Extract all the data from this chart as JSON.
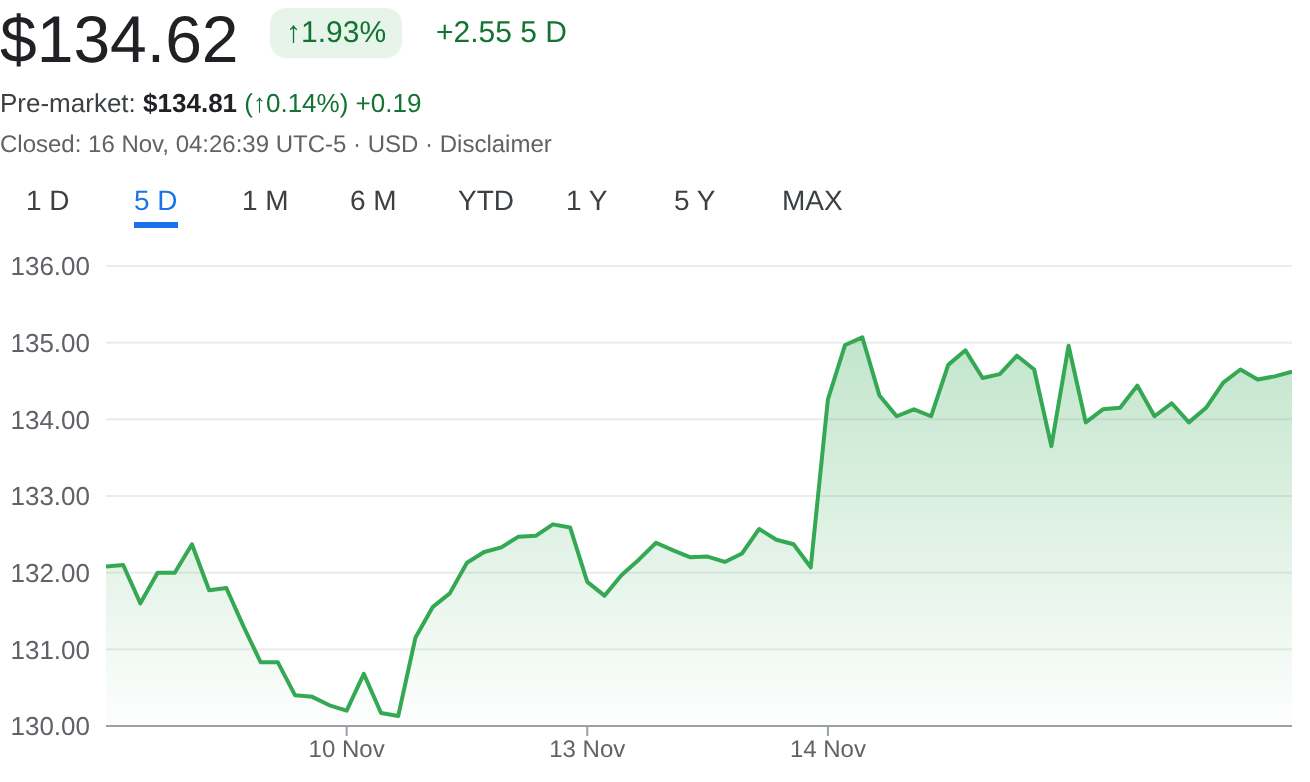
{
  "chart_data": {
    "type": "area",
    "title": "$134.62",
    "annotations": [
      "↑1.93%",
      "+2.55 5 D",
      "Pre-market:",
      "$134.81",
      "(↑0.14%) +0.19",
      "Closed: 16 Nov, 04:26:39 UTC-5 · USD · Disclaimer",
      "1 D",
      "5 D",
      "1 M",
      "6 M",
      "YTD",
      "1 Y",
      "5 Y",
      "MAX"
    ],
    "categories": [
      null,
      null,
      null,
      null,
      null,
      null,
      null,
      null,
      null,
      null,
      null,
      null,
      null,
      null,
      "10 Nov",
      null,
      null,
      null,
      null,
      null,
      null,
      null,
      null,
      null,
      null,
      null,
      null,
      null,
      "13 Nov",
      null,
      null,
      null,
      null,
      null,
      null,
      null,
      null,
      null,
      null,
      null,
      null,
      null,
      "14 Nov",
      null,
      null,
      null,
      null,
      null,
      null,
      null,
      null,
      null,
      null,
      null,
      null,
      null,
      null,
      null,
      null,
      null,
      null,
      null,
      null,
      null,
      null,
      null,
      null,
      null,
      null,
      null
    ],
    "series": [
      {
        "color": "#34a853",
        "values": [
          132.08,
          132.1,
          131.6,
          132.0,
          132.0,
          132.37,
          131.77,
          131.8,
          131.3,
          130.83,
          130.83,
          130.4,
          130.38,
          130.27,
          130.2,
          130.68,
          130.17,
          130.13,
          131.15,
          131.55,
          131.73,
          132.13,
          132.27,
          132.33,
          132.47,
          132.48,
          132.63,
          132.59,
          131.88,
          131.7,
          131.97,
          132.17,
          132.39,
          132.29,
          132.2,
          132.21,
          132.14,
          132.25,
          132.57,
          132.43,
          132.37,
          132.07,
          134.26,
          134.97,
          135.07,
          134.31,
          134.04,
          134.13,
          134.04,
          134.71,
          134.9,
          134.54,
          134.59,
          134.83,
          134.65,
          133.65,
          134.96,
          133.96,
          134.13,
          134.15,
          134.44,
          134.04,
          134.21,
          133.96,
          134.15,
          134.48,
          134.65,
          134.52,
          134.56,
          134.62
        ]
      }
    ],
    "ylim": [
      130,
      136
    ],
    "yticks": [
      {
        "value": 130,
        "label": "130.00"
      },
      {
        "value": 131,
        "label": "131.00"
      },
      {
        "value": 132,
        "label": "132.00"
      },
      {
        "value": 133,
        "label": "133.00"
      },
      {
        "value": 134,
        "label": "134.00"
      },
      {
        "value": 135,
        "label": "135.00"
      },
      {
        "value": 136,
        "label": "136.00"
      }
    ],
    "grid": "y",
    "legend": false,
    "marker": "none",
    "line_style": "solid"
  }
}
